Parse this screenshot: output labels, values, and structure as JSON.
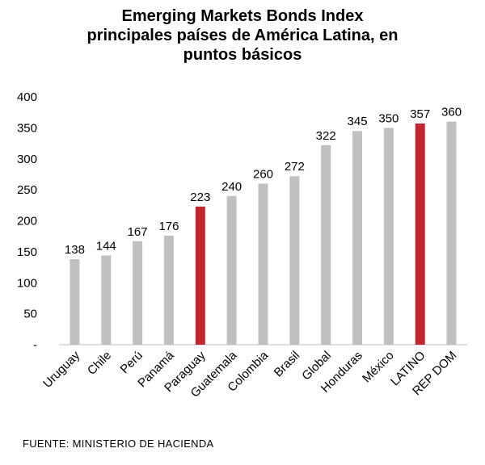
{
  "chart_data": {
    "type": "bar",
    "title_lines": [
      "Emerging Markets Bonds Index",
      "principales países de América Latina, en",
      "puntos básicos"
    ],
    "categories": [
      "Uruguay",
      "Chile",
      "Perú",
      "Panamá",
      "Paraguay",
      "Guatemala",
      "Colombia",
      "Brasil",
      "Global",
      "Honduras",
      "México",
      "LATINO",
      "REP DOM"
    ],
    "values": [
      138,
      144,
      167,
      176,
      223,
      240,
      260,
      272,
      322,
      345,
      350,
      357,
      360
    ],
    "highlighted": [
      "Paraguay",
      "LATINO"
    ],
    "ylim": [
      0,
      400
    ],
    "yticks": [
      "-",
      "50",
      "100",
      "150",
      "200",
      "250",
      "300",
      "350",
      "400"
    ],
    "grid": false,
    "colors": {
      "bar": "#c0c0c0",
      "highlight": "#c1272d"
    }
  },
  "source": "FUENTE: MINISTERIO DE HACIENDA"
}
